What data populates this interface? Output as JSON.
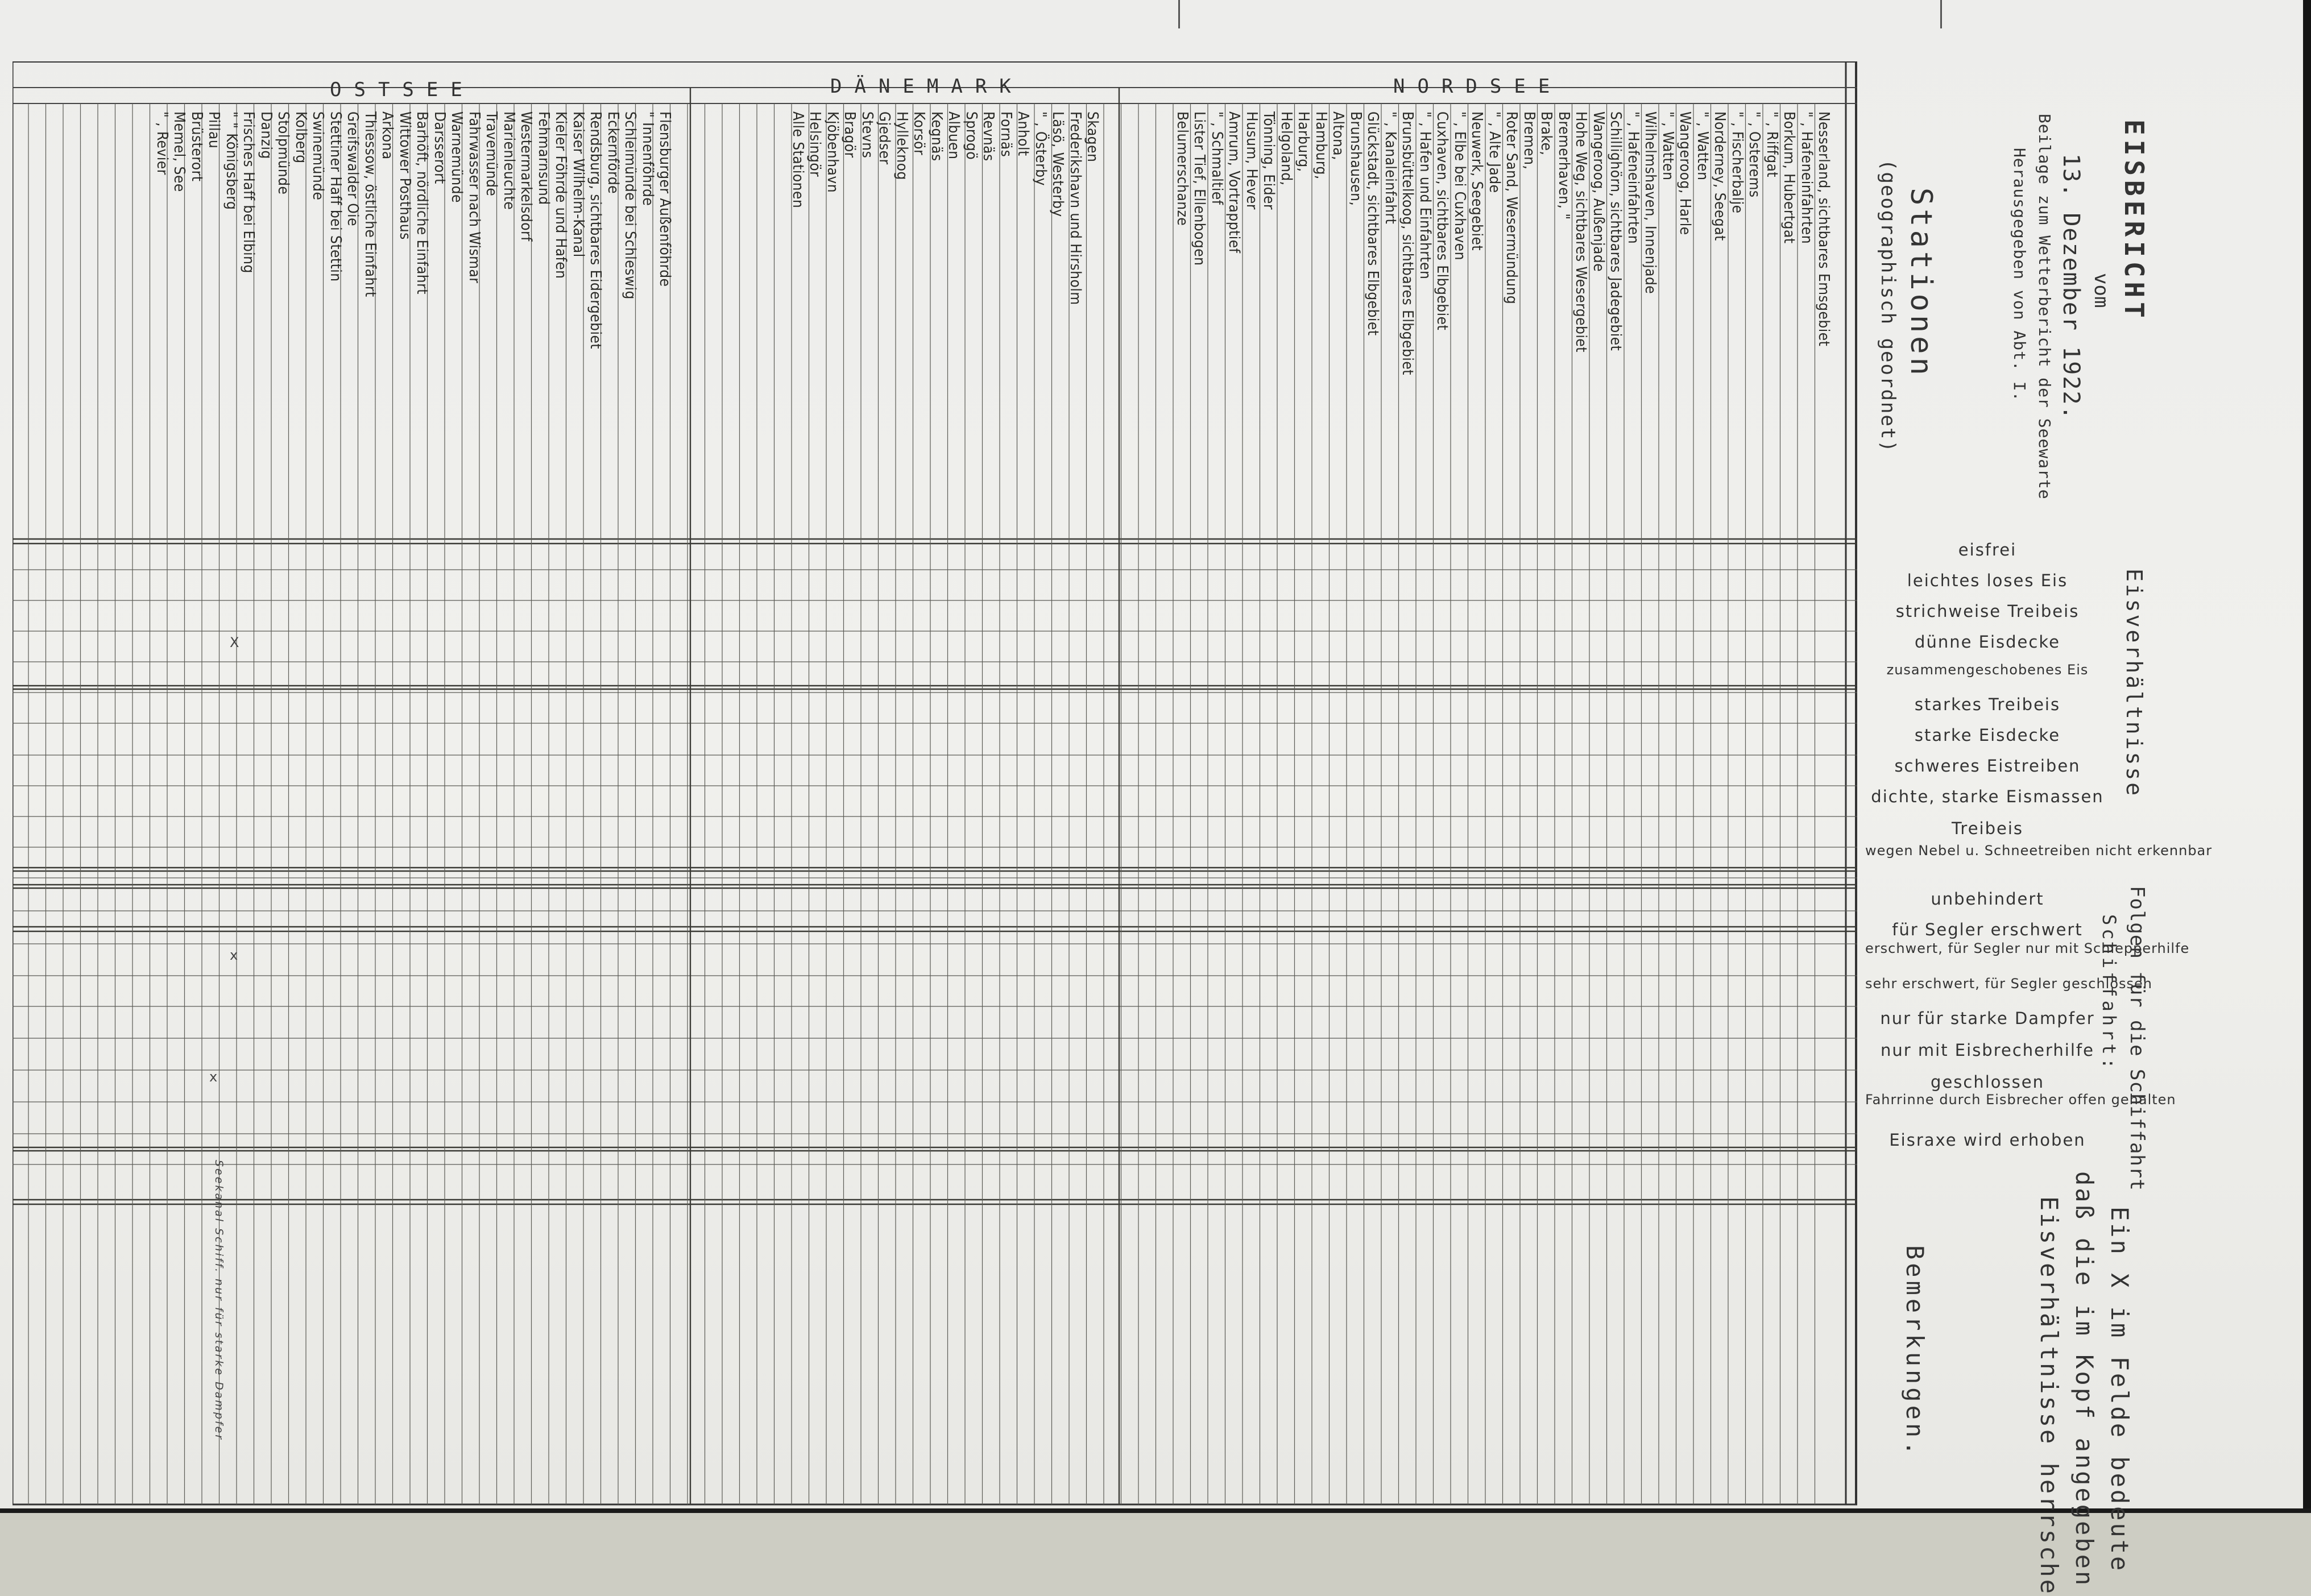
{
  "header": {
    "title": "EISBERICHT",
    "vom": "vom",
    "date": "13. Dezember 1922.",
    "subtitle": "Beilage zum Wetterbericht der Seewarte",
    "publisher": "Herausgegeben von Abt. I."
  },
  "stations_heading": "Stationen",
  "stations_subheading": "(geographisch geordnet)",
  "regions": {
    "ostsee": "OSTSEE",
    "daenemark": "DÄNEMARK",
    "nordsee": "NORDSEE"
  },
  "stations": {
    "nordsee": [
      "Nesserland, sichtbares Emsgebiet",
      "\" , Hafeneinfahrten",
      "Borkum, Hubertgat",
      "\" , Riffgat",
      "\" , Osterems",
      "\" , Fischerbalje",
      "Norderney, Seegat",
      "\" , Watten",
      "Wangeroog, Harle",
      "\" , Watten",
      "Wilhelmshaven, Innenjade",
      "\" , Hafeneinfahrten",
      "Schillighörn, sichtbares Jadegebiet",
      "Wangeroog, Außenjade",
      "Hohe Weg, sichtbares Wesergebiet",
      "Bremerhaven, \"",
      "Brake,",
      "Bremen,",
      "Roter Sand, Wesermündung",
      "\" , Alte Jade",
      "Neuwerk, Seegebiet",
      "\" , Elbe bei Cuxhaven",
      "Cuxhaven, sichtbares Elbgebiet",
      "\" , Hafen und Einfahrten",
      "Brunsbüttelkoog, sichtbares Elbgebiet",
      "\" , Kanaleinfahrt",
      "Glückstadt, sichtbares Elbgebiet",
      "Brunshausen,",
      "Altona,",
      "Hamburg,",
      "Harburg,",
      "Helgoland,",
      "Tönning, Eider",
      "Husum, Hever",
      "Amrum, Vortrapptief",
      "\" , Schmaltief",
      "Lister Tief, Ellenbogen",
      "Belumerschanze"
    ],
    "daenemark": [
      "Skagen",
      "Frederikshavn und Hirsholm",
      "Läsö, Westerby",
      "\" , Österby",
      "Anholt",
      "Fornäs",
      "Revnäs",
      "Sprogö",
      "Albuen",
      "Kegnäs",
      "Korsör",
      "Hylleknog",
      "Gjedser",
      "Stevns",
      "Bragör",
      "Kjöbenhavn",
      "Helsingör",
      "Alle Stationen"
    ],
    "ostsee": [
      "Flensburger Außenföhrde",
      "\" Innenföhrde",
      "Schleimünde bei Schleswig",
      "Eckernförde",
      "Rendsburg, sichtbares Eidergebiet",
      "Kaiser Wilhelm-Kanal",
      "Kieler Föhrde und Hafen",
      "Fehmarnsund",
      "Westermarkelsdorf",
      "Marienleuchte",
      "Travemünde",
      "Fahrwasser nach Wismar",
      "Warnemünde",
      "Darsserort",
      "Barhöft, nördliche Einfahrt",
      "Wittower Posthaus",
      "Arkona",
      "Thiessow, östliche Einfahrt",
      "Greifswalder Oie",
      "Stettiner Haff bei Stettin",
      "Swinemünde",
      "Kolberg",
      "Stolpmünde",
      "Danzig",
      "Frisches Haff bei Elbing",
      "\" \" Königsberg",
      "Pillau",
      "Brüsterort",
      "Memel, See",
      "\" , Revier"
    ]
  },
  "ice_conditions": {
    "heading": "Eisverhältnisse",
    "items": [
      "eisfrei",
      "leichtes loses Eis",
      "strichweise Treibeis",
      "dünne Eisdecke",
      "zusammengeschobenes Eis",
      "starkes Treibeis",
      "starke Eisdecke",
      "schweres Eistreiben",
      "dichte, starke Eismassen",
      "Treibeis",
      "wegen Nebel u. Schneetreiben nicht erkennbar"
    ]
  },
  "shipping": {
    "heading": "Folgen für die Schiffahrt",
    "subheading": "Schiffahrt:",
    "items": [
      "unbehindert",
      "für Segler erschwert",
      "erschwert, für Segler nur mit Schlepperhilfe",
      "sehr erschwert, für Segler geschlossen",
      "nur für starke Dampfer",
      "nur mit Eisbrecherhilfe",
      "geschlossen",
      "Fahrrinne durch Eisbrecher offen gehalten",
      "Eisraxe wird erhoben"
    ]
  },
  "remarks": {
    "explanation_line1": "Ein X im Felde bedeute",
    "explanation_line2": "daß die im Kopf angegeben",
    "explanation_line3": "Eisverhältnisse herrsche",
    "heading": "Bemerkungen."
  },
  "marks": [
    {
      "station": "\" \" Königsberg",
      "row": "strichweise Treibeis",
      "symbol": "X"
    },
    {
      "station": "\" \" Königsberg",
      "row": "erschwert, für Segler nur mit Schlepperhilfe",
      "symbol": "x"
    },
    {
      "station": "Pillau",
      "row": "nur mit Eisbrecherhilfe",
      "symbol": "x"
    }
  ],
  "handwritten_remark": "Seekanal Schiff. nur für starke Dampfer"
}
